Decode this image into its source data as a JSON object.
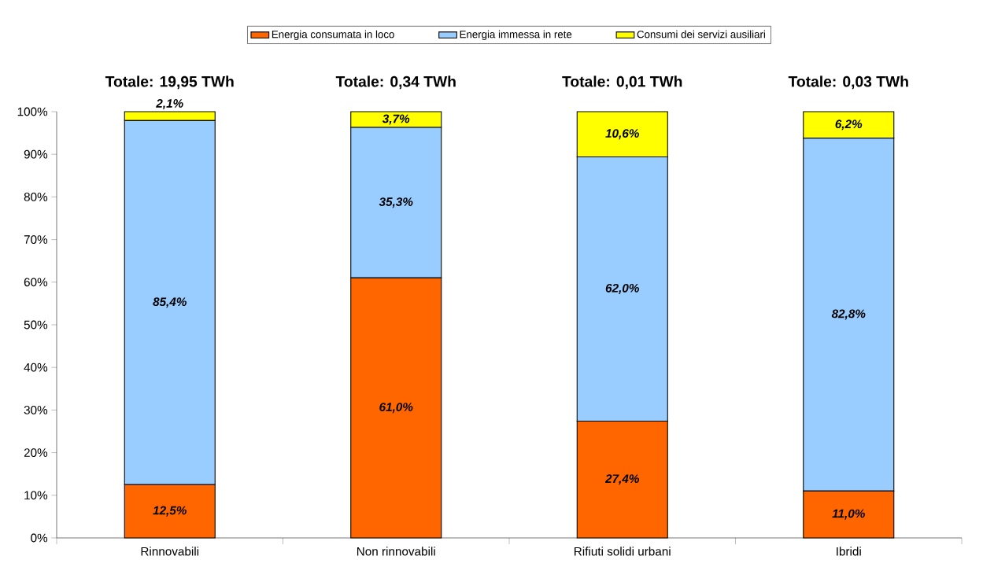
{
  "chart_data": {
    "type": "bar",
    "stacked": true,
    "categories": [
      "Rinnovabili",
      "Non rinnovabili",
      "Rifiuti solidi urbani",
      "Ibridi"
    ],
    "series": [
      {
        "name": "Energia consumata in loco",
        "color": "#ff6600",
        "values": [
          12.5,
          61.0,
          27.4,
          11.0
        ],
        "value_labels": [
          "12,5%",
          "61,0%",
          "27,4%",
          "11,0%"
        ]
      },
      {
        "name": "Energia immessa in rete",
        "color": "#99ccff",
        "values": [
          85.4,
          35.3,
          62.0,
          82.8
        ],
        "value_labels": [
          "85,4%",
          "35,3%",
          "62,0%",
          "82,8%"
        ]
      },
      {
        "name": "Consumi dei servizi ausiliari",
        "color": "#ffff00",
        "values": [
          2.1,
          3.7,
          10.6,
          6.2
        ],
        "value_labels": [
          "2,1%",
          "3,7%",
          "10,6%",
          "6,2%"
        ]
      }
    ],
    "annotations": [
      {
        "text": "Totale: 19,95 TWh",
        "x": "Rinnovabili",
        "y": 100
      },
      {
        "text": "Totale: 0,34 TWh",
        "x": "Non rinnovabili",
        "y": 100
      },
      {
        "text": "Totale: 0,01 TWh",
        "x": "Rifiuti solidi urbani",
        "y": 100
      },
      {
        "text": "Totale: 0,03 TWh",
        "x": "Ibridi",
        "y": 100
      }
    ],
    "ylim": [
      0,
      100
    ],
    "yticks": [
      {
        "value": 0,
        "label": "0%"
      },
      {
        "value": 10,
        "label": "10%"
      },
      {
        "value": 20,
        "label": "20%"
      },
      {
        "value": 30,
        "label": "30%"
      },
      {
        "value": 40,
        "label": "40%"
      },
      {
        "value": 50,
        "label": "50%"
      },
      {
        "value": 60,
        "label": "60%"
      },
      {
        "value": 70,
        "label": "70%"
      },
      {
        "value": 80,
        "label": "80%"
      },
      {
        "value": 90,
        "label": "90%"
      },
      {
        "value": 100,
        "label": "100%"
      }
    ],
    "grid": false,
    "legend": "top"
  }
}
